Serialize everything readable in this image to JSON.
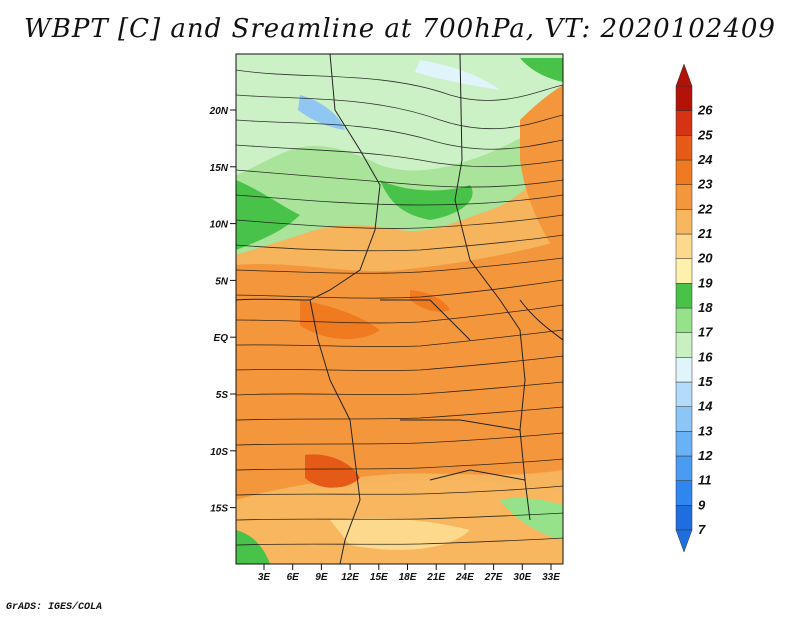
{
  "title": "WBPT [C] and Sreamline at 700hPa, VT: 2020102409",
  "credit": "GrADS: IGES/COLA",
  "lat_labels": [
    "20N",
    "15N",
    "10N",
    "5N",
    "EQ",
    "5S",
    "10S",
    "15S"
  ],
  "lon_labels": [
    "3E",
    "6E",
    "9E",
    "12E",
    "15E",
    "18E",
    "21E",
    "24E",
    "27E",
    "30E",
    "33E"
  ],
  "colorbar": {
    "labels": [
      "7",
      "9",
      "11",
      "12",
      "13",
      "14",
      "15",
      "16",
      "17",
      "18",
      "19",
      "20",
      "21",
      "22",
      "23",
      "24",
      "25",
      "26"
    ],
    "colors": [
      "#1e6ee0",
      "#2f86ee",
      "#4a9cf2",
      "#69b2f5",
      "#8cc6f7",
      "#b3dcfa",
      "#dff4fb",
      "#c8f0c0",
      "#96e28a",
      "#49c24a",
      "#fdf1ad",
      "#fcd98c",
      "#f8b65e",
      "#f4973c",
      "#ef7a1f",
      "#e65a17",
      "#d63214",
      "#b21208"
    ]
  },
  "map": {
    "variable": "WBPT",
    "unit": "C",
    "level": "700hPa",
    "valid_time": "2020102409"
  }
}
